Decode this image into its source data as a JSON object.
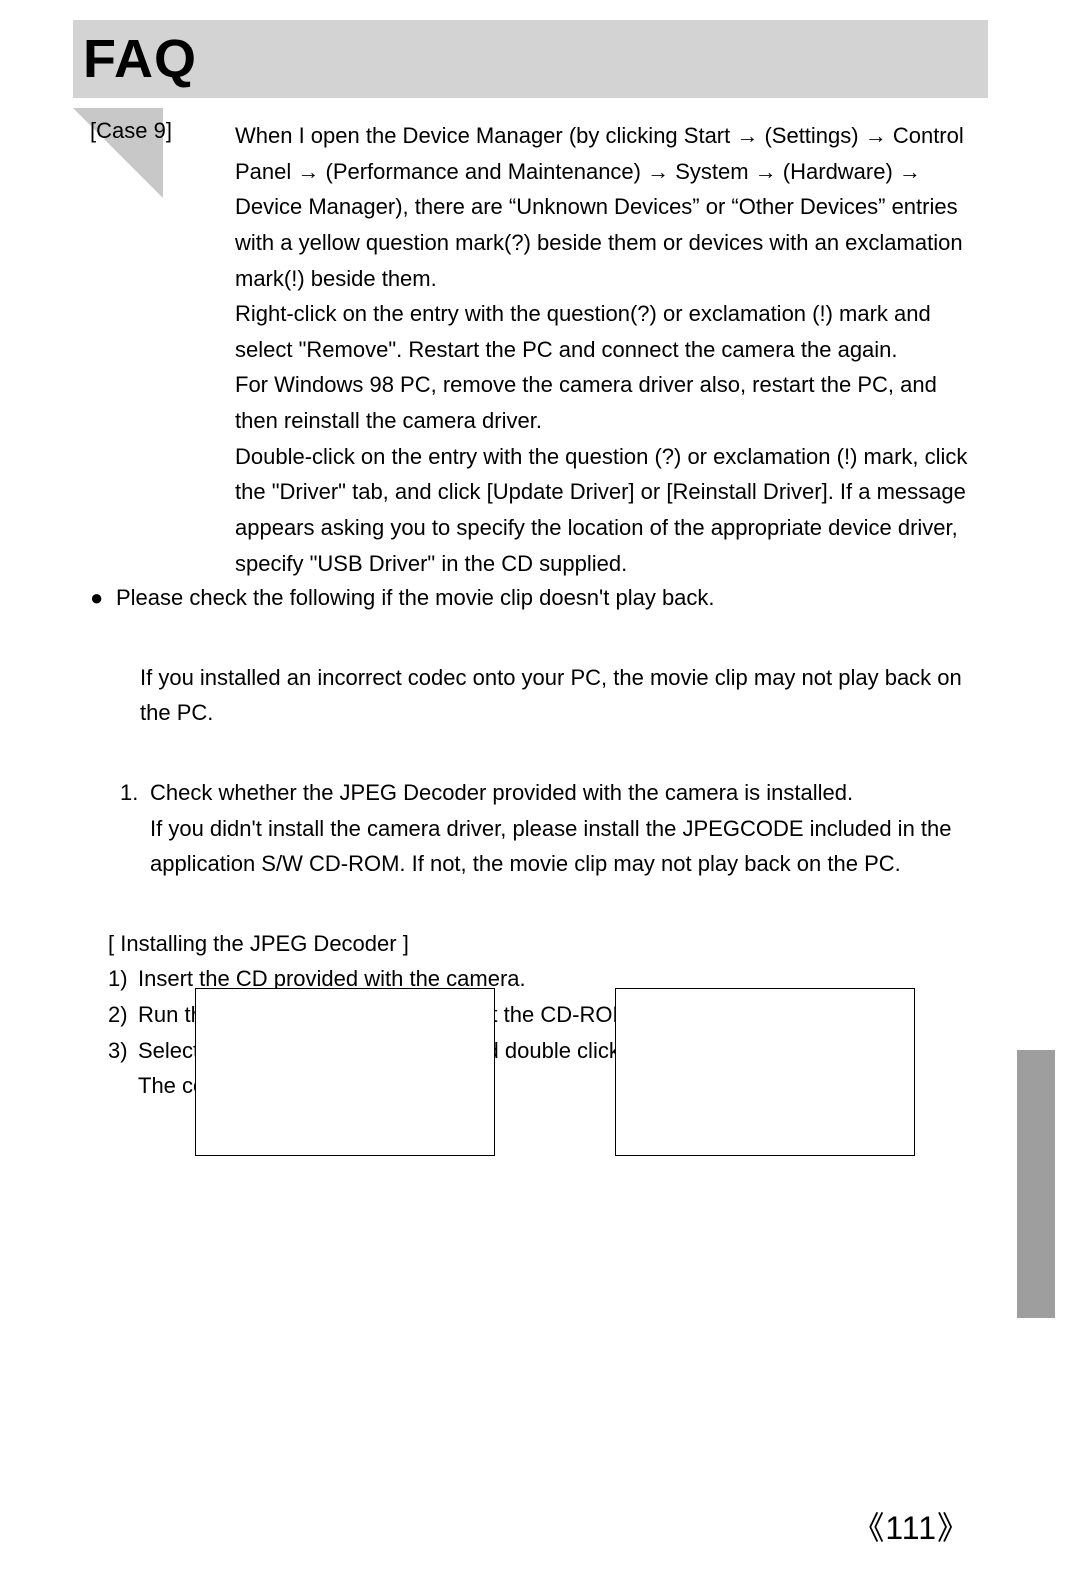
{
  "header": {
    "title": "FAQ"
  },
  "case": {
    "label": "[Case 9]",
    "body": "When I open the Device Manager (by clicking Start → (Settings) → Control Panel → (Performance and Maintenance) → System → (Hardware) → Device Manager), there are “Unknown Devices” or “Other Devices” entries with a yellow question mark(?) beside them or devices with an exclamation mark(!) beside them.\nRight-click on the entry with the question(?) or exclamation (!) mark and select \"Remove\". Restart the PC and connect the camera the again.\nFor Windows 98 PC, remove the camera driver also, restart the PC, and then reinstall the camera driver.\nDouble-click on the entry with the question (?) or exclamation (!) mark, click the \"Driver\" tab, and click [Update Driver] or [Reinstall Driver]. If a message appears asking you to specify the location of the appropriate device driver, specify \"USB Driver\" in the CD supplied."
  },
  "section2": {
    "bullet_lead": "Please check the following if the movie clip doesn't play back.",
    "para1": "If you installed an incorrect codec onto your PC, the movie clip may not play back on the PC.",
    "step1_num": "1.",
    "step1_line1": "Check whether the JPEG Decoder provided with the camera is installed.",
    "step1_line2": "If you didn't install the camera driver, please install the JPEGCODE included in the application S/W CD-ROM. If not, the movie clip may not play back on the PC.",
    "install_header": "[ Installing the JPEG Decoder ]",
    "sub1_num": "1)",
    "sub1_text": "Insert the CD provided with the camera.",
    "sub2_num": "2)",
    "sub2_text": "Run the windows explorer and select the CD-ROM drive.",
    "sub3_num": "3)",
    "sub3_text": "Select the JPEG_Decoder folder and double click the Setup.exe file.",
    "sub3_text2": "The codec will be installed."
  },
  "page_number": "111",
  "colors": {
    "header_bg": "#d3d3d3",
    "triangle": "#c8c8c8",
    "side_tab": "#9e9e9e",
    "text": "#000000",
    "page_bg": "#ffffff"
  }
}
